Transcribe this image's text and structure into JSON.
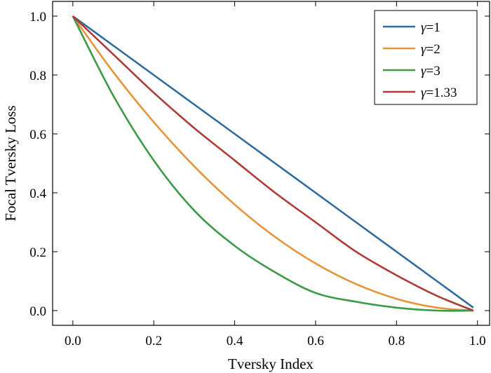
{
  "chart_data": {
    "type": "line",
    "xlabel": "Tversky Index",
    "ylabel": "Focal Tversky Loss",
    "xlim": [
      -0.05,
      1.03
    ],
    "ylim": [
      -0.05,
      1.05
    ],
    "xticks": [
      0.0,
      0.2,
      0.4,
      0.6,
      0.8,
      1.0
    ],
    "xtick_labels": [
      "0.0",
      "0.2",
      "0.4",
      "0.6",
      "0.8",
      "1.0"
    ],
    "yticks": [
      0.0,
      0.2,
      0.4,
      0.6,
      0.8,
      1.0
    ],
    "ytick_labels": [
      "0.0",
      "0.2",
      "0.4",
      "0.6",
      "0.8",
      "1.0"
    ],
    "grid": false,
    "legend_position": "upper right",
    "x": [
      0.0,
      0.1,
      0.2,
      0.3,
      0.4,
      0.5,
      0.6,
      0.7,
      0.8,
      0.9,
      0.99
    ],
    "series": [
      {
        "name_prefix": "γ",
        "name_value": "=1",
        "color": "#2e6b9e",
        "values": [
          1.0,
          0.9,
          0.8,
          0.7,
          0.6,
          0.5,
          0.4,
          0.3,
          0.2,
          0.1,
          0.01
        ]
      },
      {
        "name_prefix": "γ",
        "name_value": "=2",
        "color": "#e8923a",
        "values": [
          1.0,
          0.81,
          0.64,
          0.49,
          0.36,
          0.25,
          0.16,
          0.09,
          0.04,
          0.01,
          0.0
        ]
      },
      {
        "name_prefix": "γ",
        "name_value": "=3",
        "color": "#3a9a45",
        "values": [
          1.0,
          0.73,
          0.51,
          0.34,
          0.22,
          0.13,
          0.06,
          0.03,
          0.01,
          0.0,
          0.0
        ]
      },
      {
        "name_prefix": "γ",
        "name_value": "=1.33",
        "color": "#b03a36",
        "values": [
          1.0,
          0.87,
          0.74,
          0.62,
          0.51,
          0.4,
          0.3,
          0.2,
          0.12,
          0.05,
          0.0
        ]
      }
    ]
  }
}
